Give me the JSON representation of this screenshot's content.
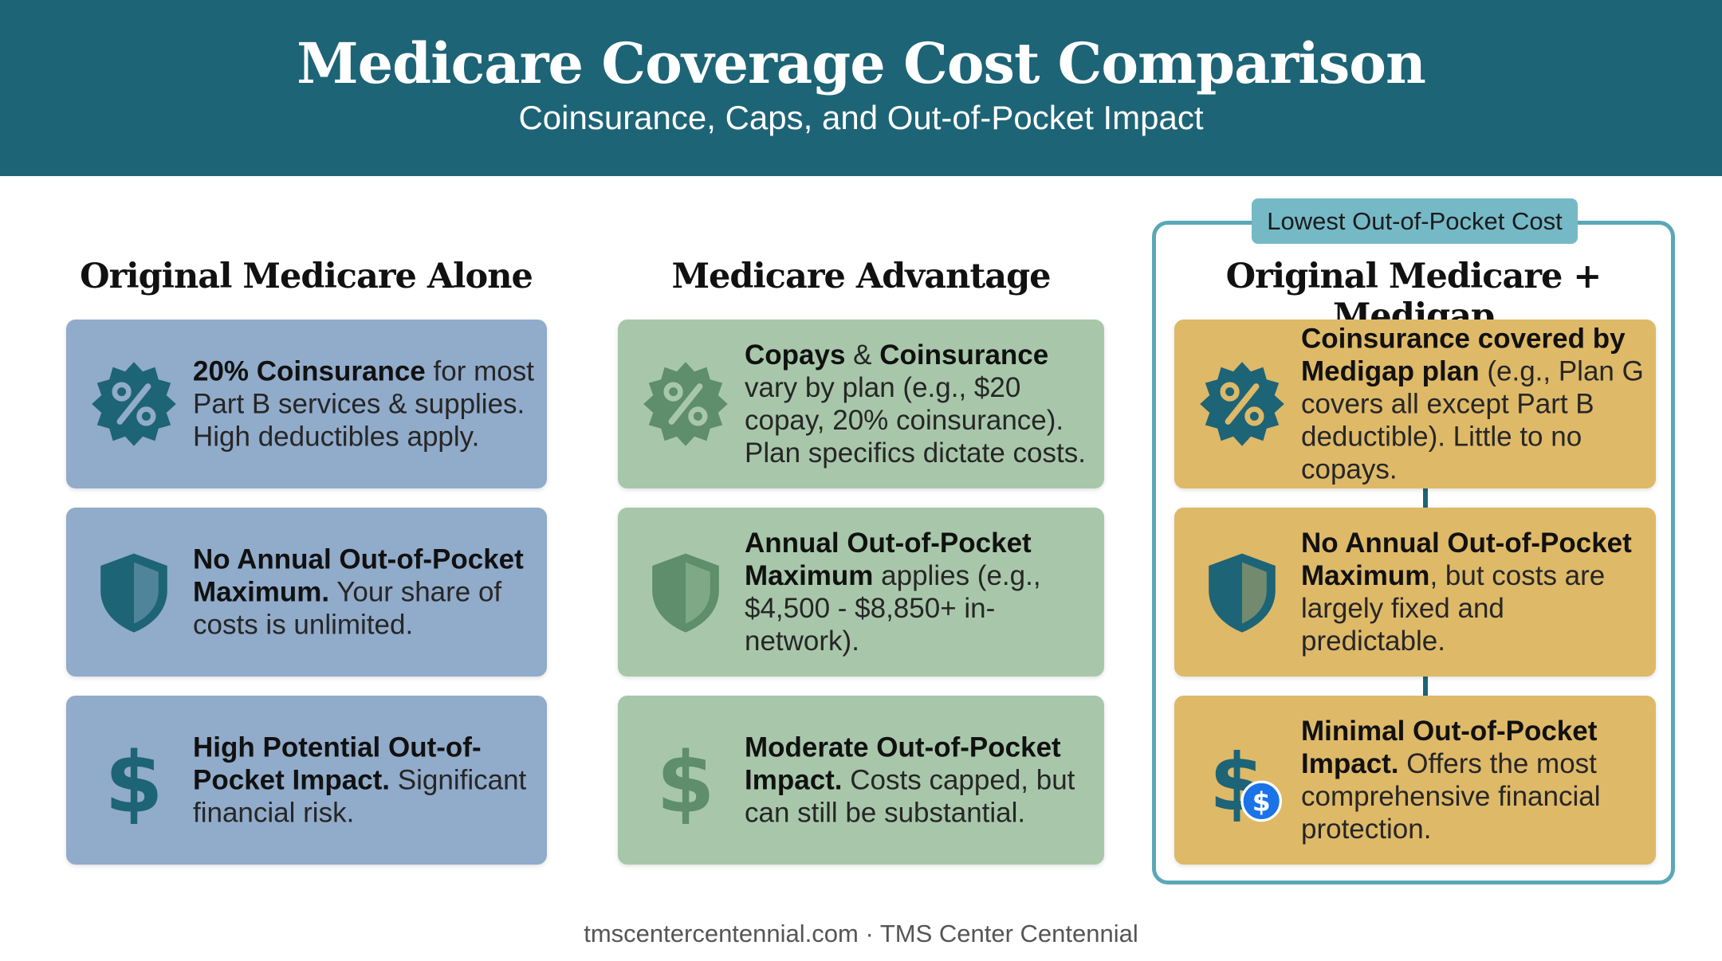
{
  "header": {
    "title": "Medicare Coverage Cost Comparison",
    "subtitle": "Coinsurance, Caps, and Out-of-Pocket Impact"
  },
  "columns": [
    {
      "title": "Original Medicare Alone",
      "color": "#91abca",
      "cards": [
        {
          "icon": "percent-badge-icon",
          "bold": "20% Coinsurance",
          "rest": " for most Part B services & supplies. High deductibles apply."
        },
        {
          "icon": "shield-icon",
          "bold": "No Annual Out-of-Pocket Maximum.",
          "rest": " Your share of costs is unlimited."
        },
        {
          "icon": "dollar-icon",
          "bold": "High Potential Out-of-Pocket Impact.",
          "rest": " Significant financial risk."
        }
      ]
    },
    {
      "title": "Medicare Advantage",
      "color": "#a8c7aa",
      "cards": [
        {
          "icon": "percent-badge-icon",
          "bold": "Copays",
          "mid": " & ",
          "bold2": "Coinsurance",
          "rest": " vary by plan (e.g., $20 copay, 20% coinsurance). Plan specifics dictate costs."
        },
        {
          "icon": "shield-icon",
          "bold": "Annual Out-of-Pocket Maximum",
          "rest": " applies (e.g., $4,500 - $8,850+ in-network)."
        },
        {
          "icon": "dollar-icon",
          "bold": "Moderate Out-of-Pocket Impact.",
          "rest": " Costs capped, but can still be substantial."
        }
      ]
    },
    {
      "title": "Original Medicare + Medigap",
      "color": "#deb968",
      "badge": "Lowest Out-of-Pocket Cost",
      "cards": [
        {
          "icon": "percent-badge-icon",
          "bold": "Coinsurance covered by Medigap plan",
          "rest": " (e.g., Plan G covers all except Part B deductible). Little to no copays."
        },
        {
          "icon": "shield-icon",
          "bold": "No Annual Out-of-Pocket Maximum",
          "rest": ", but costs are largely fixed and predictable."
        },
        {
          "icon": "dollar-coin-icon",
          "bold": "Minimal Out-of-Pocket Impact.",
          "rest": " Offers the most comprehensive financial protection."
        }
      ]
    }
  ],
  "colors": {
    "header": "#1d6476",
    "icon_blue": "#1d6476",
    "icon_green": "#5e8e6b",
    "frame": "#5aa8b6",
    "coin": "#1a73e8"
  },
  "footer": "tmscentercentennial.com · TMS Center Centennial"
}
